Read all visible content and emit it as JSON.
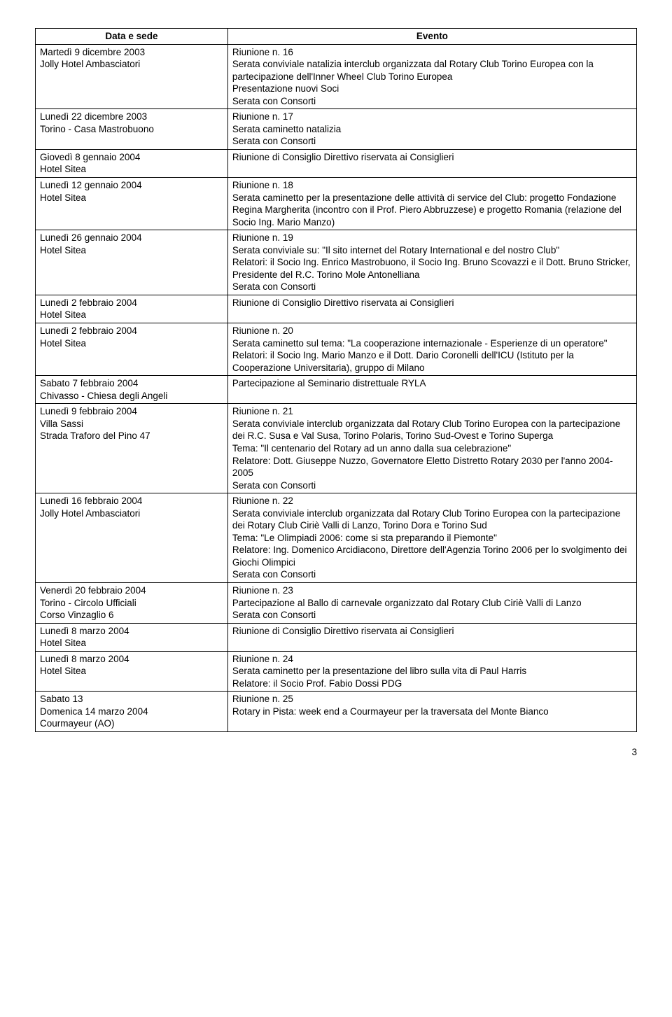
{
  "columns": [
    "Data e sede",
    "Evento"
  ],
  "rows": [
    {
      "left": "Martedì 9 dicembre 2003\nJolly Hotel Ambasciatori",
      "right": "Riunione n. 16\nSerata conviviale natalizia interclub organizzata dal Rotary Club Torino Europea con la partecipazione dell'Inner Wheel Club Torino Europea\nPresentazione nuovi Soci\nSerata con Consorti"
    },
    {
      "left": "Lunedì 22 dicembre 2003\nTorino - Casa Mastrobuono",
      "right": "Riunione n. 17\nSerata caminetto natalizia\nSerata con Consorti"
    },
    {
      "left": "Giovedì 8 gennaio 2004\nHotel Sitea",
      "right": "Riunione di Consiglio Direttivo riservata ai Consiglieri"
    },
    {
      "left": "Lunedì 12 gennaio 2004\nHotel Sitea",
      "right": "Riunione n. 18\nSerata caminetto per la presentazione delle attività di service del Club: progetto Fondazione Regina Margherita (incontro con il Prof. Piero Abbruzzese) e progetto Romania (relazione del Socio Ing. Mario Manzo)"
    },
    {
      "left": "Lunedì 26 gennaio 2004\nHotel Sitea",
      "right": "Riunione n. 19\nSerata conviviale su: \"Il sito internet del Rotary International e del nostro Club\"\nRelatori: il Socio Ing. Enrico Mastrobuono, il Socio Ing. Bruno Scovazzi e il Dott. Bruno Stricker, Presidente del R.C. Torino Mole Antonelliana\nSerata con Consorti"
    },
    {
      "left": "Lunedì 2 febbraio 2004\nHotel Sitea",
      "right": "Riunione di Consiglio Direttivo riservata ai Consiglieri"
    },
    {
      "left": "Lunedì 2 febbraio 2004\nHotel Sitea",
      "right": "Riunione n. 20\nSerata caminetto sul tema: \"La cooperazione internazionale - Esperienze di un operatore\"\nRelatori: il Socio Ing. Mario Manzo e il Dott. Dario Coronelli dell'ICU (Istituto per la Cooperazione Universitaria), gruppo di Milano"
    },
    {
      "left": "Sabato 7 febbraio 2004\nChivasso - Chiesa degli Angeli",
      "right": "Partecipazione al Seminario distrettuale RYLA"
    },
    {
      "left": "Lunedì 9 febbraio 2004\nVilla Sassi\nStrada Traforo del Pino 47",
      "right": "Riunione n. 21\nSerata conviviale interclub organizzata dal Rotary Club Torino Europea con la partecipazione dei R.C. Susa e Val Susa, Torino Polaris, Torino Sud-Ovest e Torino Superga\nTema: \"Il centenario del Rotary ad un anno dalla sua celebrazione\"\nRelatore: Dott. Giuseppe Nuzzo, Governatore Eletto Distretto Rotary 2030 per l'anno 2004-2005\nSerata con Consorti"
    },
    {
      "left": "Lunedì 16 febbraio 2004\nJolly Hotel Ambasciatori",
      "right": "Riunione n. 22\nSerata conviviale interclub organizzata dal Rotary Club Torino Europea con la partecipazione dei Rotary Club Ciriè Valli di Lanzo, Torino Dora e Torino Sud\nTema: \"Le Olimpiadi 2006: come si sta preparando il Piemonte\"\nRelatore: Ing. Domenico Arcidiacono, Direttore dell'Agenzia Torino 2006 per lo svolgimento dei Giochi Olimpici\nSerata con Consorti"
    },
    {
      "left": "Venerdì 20 febbraio 2004\nTorino - Circolo Ufficiali\nCorso Vinzaglio 6",
      "right": "Riunione n. 23\nPartecipazione al Ballo di carnevale organizzato dal Rotary Club Ciriè Valli di Lanzo\nSerata con Consorti"
    },
    {
      "left": "Lunedì 8 marzo 2004\nHotel Sitea",
      "right": "Riunione di Consiglio Direttivo riservata ai Consiglieri"
    },
    {
      "left": "Lunedì 8 marzo 2004\nHotel Sitea",
      "right": "Riunione n. 24\nSerata caminetto per la presentazione del libro sulla vita di Paul Harris\nRelatore: il Socio Prof. Fabio Dossi PDG"
    },
    {
      "left": "Sabato 13\nDomenica 14 marzo 2004\nCourmayeur (AO)",
      "right": "Riunione n. 25\nRotary in Pista: week end a Courmayeur per la traversata del Monte Bianco"
    }
  ],
  "page_number": "3"
}
